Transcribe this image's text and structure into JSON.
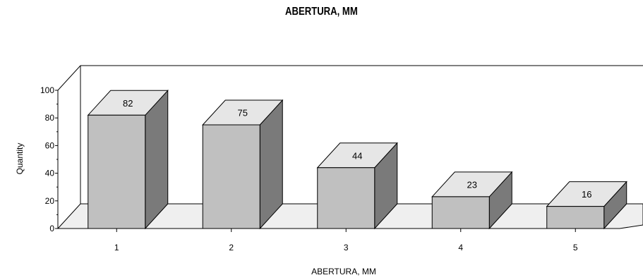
{
  "chart_data": {
    "type": "bar",
    "title": "ABERTURA, MM",
    "xlabel": "ABERTURA, MM",
    "ylabel": "Quantity",
    "categories": [
      "1",
      "2",
      "3",
      "4",
      "5"
    ],
    "values": [
      82,
      75,
      44,
      23,
      16
    ],
    "ylim": [
      0,
      100
    ],
    "yticks": [
      "0",
      "20",
      "40",
      "60",
      "80",
      "100"
    ],
    "style": "3d",
    "colors": {
      "bar_front": "#c0c0c0",
      "bar_top": "#e6e6e6",
      "bar_side": "#7a7a7a",
      "floor": "#efefef",
      "wall": "#ffffff",
      "stroke": "#000000"
    }
  }
}
